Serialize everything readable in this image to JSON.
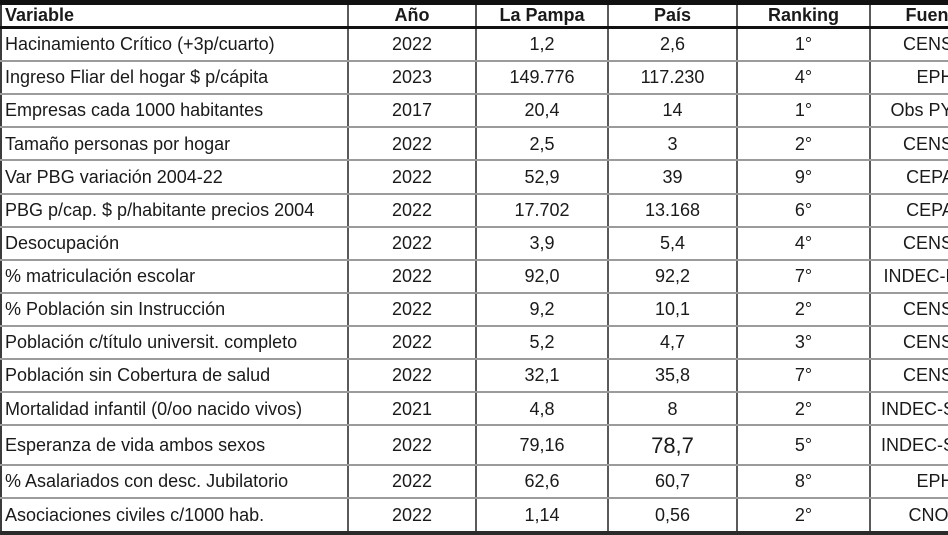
{
  "chart_data": {
    "type": "table",
    "columns": [
      {
        "key": "variable",
        "label": "Variable"
      },
      {
        "key": "anio",
        "label": "Año"
      },
      {
        "key": "la_pampa",
        "label": "La Pampa"
      },
      {
        "key": "pais",
        "label": "País"
      },
      {
        "key": "ranking",
        "label": "Ranking"
      },
      {
        "key": "fuente",
        "label": "Fuente"
      }
    ],
    "rows": [
      [
        "Hacinamiento Crítico (+3p/cuarto)",
        "2022",
        "1,2",
        "2,6",
        "1°",
        "CENSO"
      ],
      [
        "Ingreso Fliar del hogar $ p/cápita",
        "2023",
        "149.776",
        "117.230",
        "4°",
        "EPH"
      ],
      [
        "Empresas cada 1000 habitantes",
        "2017",
        "20,4",
        "14",
        "1°",
        "Obs PYME"
      ],
      [
        "Tamaño personas por hogar",
        "2022",
        "2,5",
        "3",
        "2°",
        "CENSO"
      ],
      [
        "Var PBG variación 2004-22",
        "2022",
        "52,9",
        "39",
        "9°",
        "CEPAL"
      ],
      [
        "PBG p/cap. $ p/habitante precios 2004",
        "2022",
        "17.702",
        "13.168",
        "6°",
        "CEPAL"
      ],
      [
        "Desocupación",
        "2022",
        "3,9",
        "5,4",
        "4°",
        "CENSO"
      ],
      [
        "% matriculación escolar",
        "2022",
        "92,0",
        "92,2",
        "7°",
        "INDEC-Educ"
      ],
      [
        "% Población sin Instrucción",
        "2022",
        "9,2",
        "10,1",
        "2°",
        "CENSO"
      ],
      [
        "Población c/título universit. completo",
        "2022",
        "5,2",
        "4,7",
        "3°",
        "CENSO"
      ],
      [
        "Población sin Cobertura de salud",
        "2022",
        "32,1",
        "35,8",
        "7°",
        "CENSO"
      ],
      [
        "Mortalidad infantil (0/oo nacido vivos)",
        "2021",
        "4,8",
        "8",
        "2°",
        "INDEC-Salud"
      ],
      [
        "Esperanza de vida ambos sexos",
        "2022",
        "79,16",
        "78,7",
        "5°",
        "INDEC-Salud"
      ],
      [
        "% Asalariados con desc. Jubilatorio",
        "2022",
        "62,6",
        "60,7",
        "8°",
        "EPH"
      ],
      [
        "Asociaciones civiles c/1000 hab.",
        "2022",
        "1,14",
        "0,56",
        "2°",
        "CNOC"
      ]
    ]
  },
  "colors": {
    "background": "#ffffff",
    "text": "#1a1a1a",
    "outer_border": "#111111",
    "inner_grid": "#9b9b9b"
  }
}
